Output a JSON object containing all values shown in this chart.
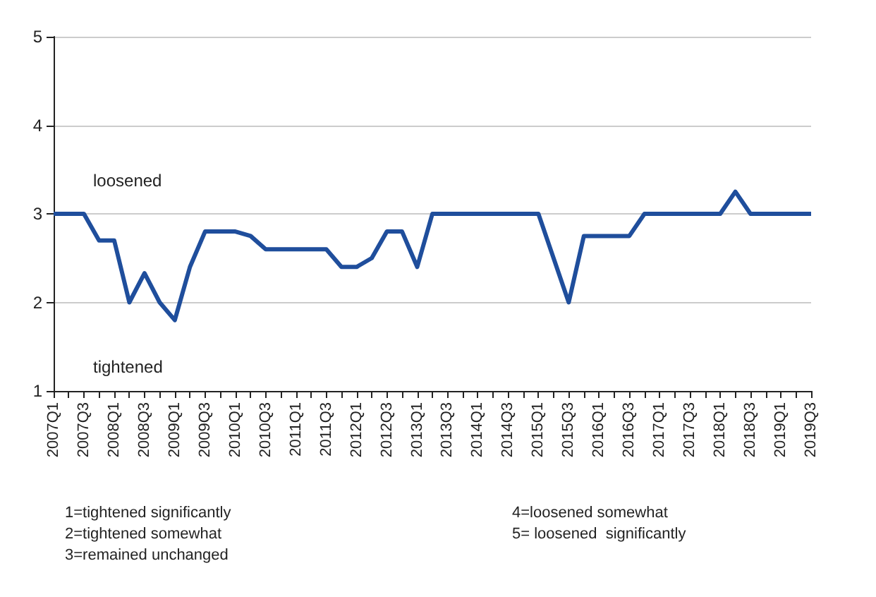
{
  "chart_data": {
    "type": "line",
    "categories": [
      "2007Q1",
      null,
      "2007Q3",
      null,
      "2008Q1",
      null,
      "2008Q3",
      null,
      "2009Q1",
      null,
      "2009Q3",
      null,
      "2010Q1",
      null,
      "2010Q3",
      null,
      "2011Q1",
      null,
      "2011Q3",
      null,
      "2012Q1",
      null,
      "2012Q3",
      null,
      "2013Q1",
      null,
      "2013Q3",
      null,
      "2014Q1",
      null,
      "2014Q3",
      null,
      "2015Q1",
      null,
      "2015Q3",
      null,
      "2016Q1",
      null,
      "2016Q3",
      null,
      "2017Q1",
      null,
      "2017Q3",
      null,
      "2018Q1",
      null,
      "2018Q3",
      null,
      "2019Q1",
      null,
      "2019Q3"
    ],
    "series": [
      {
        "color": "#1f4e9c",
        "values": [
          3,
          3,
          3,
          2.7,
          2.7,
          2.0,
          2.33,
          2.0,
          1.8,
          2.4,
          2.8,
          2.8,
          2.8,
          2.75,
          2.6,
          2.6,
          2.6,
          2.6,
          2.6,
          2.4,
          2.4,
          2.5,
          2.8,
          2.8,
          2.4,
          3,
          3,
          3,
          3,
          3,
          3,
          3,
          3,
          2.5,
          2.0,
          2.75,
          2.75,
          2.75,
          2.75,
          3,
          3,
          3,
          3,
          3,
          3,
          3.25,
          3,
          3,
          3,
          3,
          3
        ]
      }
    ],
    "ylim": [
      1,
      5
    ],
    "yticks": [
      1,
      2,
      3,
      4,
      5
    ],
    "grid": "y",
    "marker": "none",
    "line_style": "solid",
    "annotations": [
      "loosened",
      "tightened",
      "1=tightened significantly",
      "2=tightened somewhat",
      "3=remained unchanged",
      "4=loosened somewhat",
      "5= loosened  significantly"
    ]
  }
}
